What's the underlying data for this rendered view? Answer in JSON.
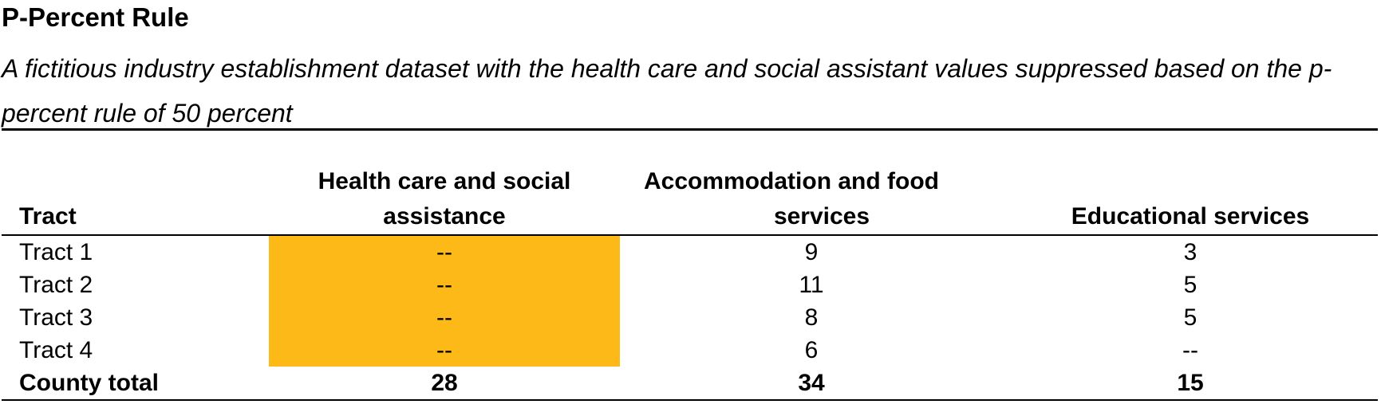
{
  "title": "P-Percent Rule",
  "subtitle": "A fictitious industry establishment dataset with the health care and social assistant values suppressed based on the p-percent rule of 50 percent",
  "colors": {
    "suppressed_highlight": "#fcb918",
    "rule": "#000000"
  },
  "table": {
    "headers": {
      "tract": "Tract",
      "health_line1": "Health care and social",
      "health_line2": "assistance",
      "accommodation_line1": "Accommodation and food",
      "accommodation_line2": "services",
      "educational": "Educational services"
    },
    "rows": [
      {
        "tract": "Tract 1",
        "health": "--",
        "accommodation": "9",
        "educational": "3"
      },
      {
        "tract": "Tract 2",
        "health": "--",
        "accommodation": "11",
        "educational": "5"
      },
      {
        "tract": "Tract 3",
        "health": "--",
        "accommodation": "8",
        "educational": "5"
      },
      {
        "tract": "Tract 4",
        "health": "--",
        "accommodation": "6",
        "educational": "--"
      }
    ],
    "total": {
      "label": "County total",
      "health": "28",
      "accommodation": "34",
      "educational": "15"
    }
  }
}
